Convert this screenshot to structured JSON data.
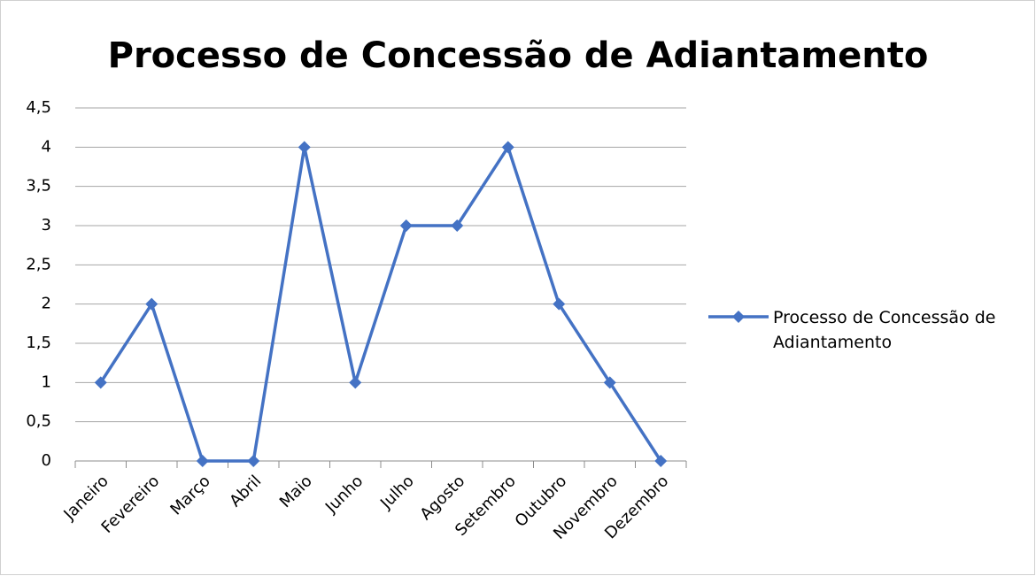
{
  "chart_data": {
    "type": "line",
    "title": "Processo de Concessão de Adiantamento",
    "categories": [
      "Janeiro",
      "Fevereiro",
      "Março",
      "Abril",
      "Maio",
      "Junho",
      "Julho",
      "Agosto",
      "Setembro",
      "Outubro",
      "Novembro",
      "Dezembro"
    ],
    "series": [
      {
        "name": "Processo de Concessão de Adiantamento",
        "color": "#4472c4",
        "values": [
          1,
          2,
          0,
          0,
          4,
          1,
          3,
          3,
          4,
          2,
          1,
          0
        ]
      }
    ],
    "ylim": [
      0,
      4.5
    ],
    "yticks": [
      0,
      {
        "value": 0.5,
        "label": "0,5"
      },
      1,
      {
        "value": 1.5,
        "label": "1,5"
      },
      2,
      {
        "value": 2.5,
        "label": "2,5"
      },
      3,
      {
        "value": 3.5,
        "label": "3,5"
      },
      4,
      {
        "value": 4.5,
        "label": "4,5"
      }
    ],
    "grid": true,
    "legend": "right"
  }
}
